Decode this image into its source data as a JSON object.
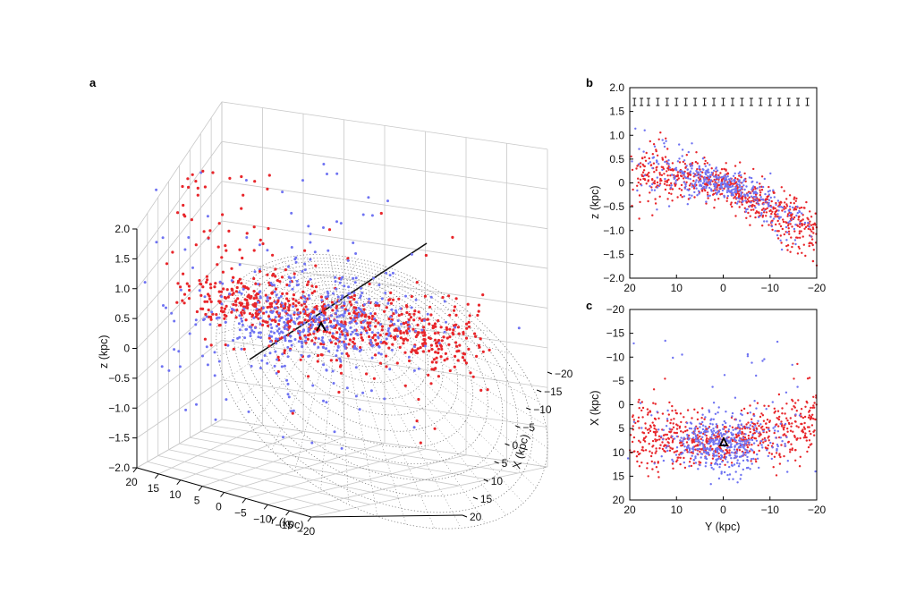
{
  "figure": {
    "colors": {
      "red": "#e8262b",
      "blue": "#6f73f2",
      "grid": "#c8c8c8",
      "mesh": "#555555",
      "axis": "#000000"
    }
  },
  "chart_data": [
    {
      "type": "scatter",
      "panel": "a",
      "view": "3d",
      "xlabel": "Y (kpc)",
      "ylabel": "X (kpc)",
      "zlabel": "z (kpc)",
      "xlim": [
        20,
        -20
      ],
      "ylim": [
        -20,
        20
      ],
      "zlim": [
        -2.0,
        2.0
      ],
      "x_ticks": [
        "20",
        "15",
        "10",
        "5",
        "0",
        "−5",
        "−10",
        "−15",
        "−20"
      ],
      "y_ticks": [
        "−20",
        "−15",
        "−10",
        "−5",
        "0",
        "5",
        "10",
        "15",
        "20"
      ],
      "z_ticks": [
        "−2.0",
        "−1.5",
        "−1.0",
        "−0.5",
        "0",
        "0.5",
        "1.0",
        "1.5",
        "2.0"
      ],
      "sun_marker": {
        "Y": 0,
        "X": 8,
        "z": 0.0
      },
      "series": [
        {
          "name": "red stars",
          "color": "#e8262b",
          "approx_count": 700
        },
        {
          "name": "blue stars",
          "color": "#6f73f2",
          "approx_count": 450
        }
      ]
    },
    {
      "type": "scatter",
      "panel": "b",
      "xlabel": "",
      "ylabel": "z (kpc)",
      "xlim": [
        20,
        -20
      ],
      "ylim": [
        -2.0,
        2.0
      ],
      "x_ticks": [
        "20",
        "10",
        "0",
        "−10",
        "−20"
      ],
      "y_ticks": [
        "2.0",
        "1.5",
        "1.0",
        "0.5",
        "0",
        "−0.5",
        "−1.0",
        "−1.5",
        "−2.0"
      ],
      "error_bars": {
        "z": 1.7,
        "x": [
          19,
          17.5,
          16,
          14,
          12,
          10,
          8,
          6,
          4,
          2,
          0,
          -2,
          -4,
          -6,
          -8,
          -10,
          -12,
          -14,
          -16,
          -18
        ]
      },
      "series": [
        {
          "name": "red stars",
          "color": "#e8262b",
          "approx_count": 650
        },
        {
          "name": "blue stars",
          "color": "#6f73f2",
          "approx_count": 420
        }
      ]
    },
    {
      "type": "scatter",
      "panel": "c",
      "xlabel": "Y (kpc)",
      "ylabel": "X (kpc)",
      "xlim": [
        20,
        -20
      ],
      "ylim": [
        -20,
        20
      ],
      "x_ticks": [
        "20",
        "10",
        "0",
        "−10",
        "−20"
      ],
      "y_ticks": [
        "−20",
        "−15",
        "−10",
        "−5",
        "0",
        "5",
        "10",
        "15",
        "20"
      ],
      "sun_marker": {
        "Y": 0,
        "X": 8
      },
      "series": [
        {
          "name": "red stars",
          "color": "#e8262b",
          "approx_count": 650
        },
        {
          "name": "blue stars",
          "color": "#6f73f2",
          "approx_count": 420
        }
      ]
    }
  ],
  "labels": {
    "a": "a",
    "b": "b",
    "c": "c",
    "a_x": "Y (kpc)",
    "a_y": "X (kpc)",
    "a_z": "z (kpc)",
    "b_y": "z (kpc)",
    "c_x": "Y (kpc)",
    "c_y": "X (kpc)"
  }
}
